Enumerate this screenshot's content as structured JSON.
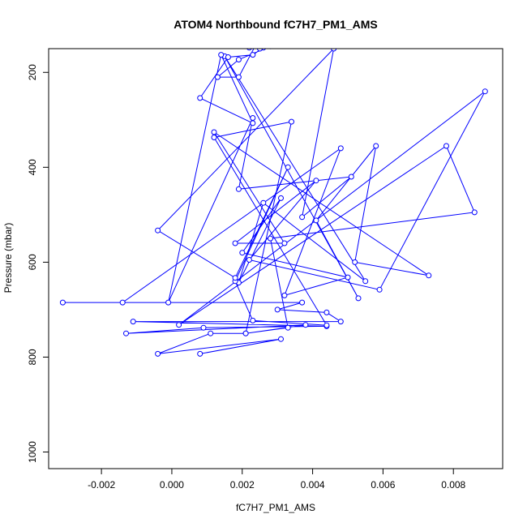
{
  "chart_data": {
    "type": "line",
    "title": "ATOM4 Northbound fC7H7_PM1_AMS",
    "xlabel": "fC7H7_PM1_AMS",
    "ylabel": "Pressure (mbar)",
    "xlim": [
      -0.0035,
      0.0094
    ],
    "ylim": [
      1035,
      150
    ],
    "y_reversed": true,
    "x_ticks": [
      -0.002,
      0.0,
      0.002,
      0.004,
      0.006,
      0.008
    ],
    "x_tick_labels": [
      "-0.002",
      "0.000",
      "0.002",
      "0.004",
      "0.006",
      "0.008"
    ],
    "y_ticks": [
      200,
      400,
      600,
      800,
      1000
    ],
    "y_tick_labels": [
      "200",
      "400",
      "600",
      "800",
      "1000"
    ],
    "series": [
      {
        "color": "#0000ff",
        "marker": "open-circle",
        "points": [
          [
            0.0008,
            793
          ],
          [
            0.0031,
            762
          ],
          [
            -0.0004,
            793
          ],
          [
            0.0011,
            750
          ],
          [
            0.0021,
            750
          ],
          [
            0.0038,
            732
          ],
          [
            -0.0013,
            750
          ],
          [
            0.0009,
            738
          ],
          [
            0.0044,
            735
          ],
          [
            -0.0011,
            725
          ],
          [
            0.0048,
            725
          ],
          [
            0.0044,
            706
          ],
          [
            0.003,
            700
          ],
          [
            0.0037,
            685
          ],
          [
            -0.0031,
            685
          ],
          [
            -0.0014,
            685
          ],
          [
            0.0048,
            360
          ],
          [
            0.0032,
            670
          ],
          [
            0.005,
            632
          ],
          [
            0.002,
            580
          ],
          [
            0.0031,
            465
          ],
          [
            0.0019,
            643
          ],
          [
            0.0026,
            475
          ],
          [
            0.0055,
            640
          ],
          [
            0.0015,
            166
          ],
          [
            0.0053,
            676
          ],
          [
            0.0041,
            512
          ],
          [
            0.0058,
            355
          ],
          [
            0.0052,
            600
          ],
          [
            0.0073,
            628
          ],
          [
            0.0012,
            326
          ],
          [
            0.0032,
            560
          ],
          [
            0.0018,
            560
          ],
          [
            0.0041,
            428
          ],
          [
            0.0022,
            595
          ],
          [
            0.0059,
            658
          ],
          [
            0.0089,
            240
          ],
          [
            0.0002,
            732
          ],
          [
            0.0078,
            355
          ],
          [
            0.0086,
            495
          ],
          [
            0.0028,
            550
          ],
          [
            0.0033,
            738
          ],
          [
            0.0021,
            750
          ],
          [
            0.0034,
            304
          ],
          [
            0.0012,
            337
          ],
          [
            0.0044,
            733
          ],
          [
            0.0023,
            723
          ],
          [
            0.0018,
            640
          ],
          [
            0.0033,
            400
          ],
          [
            0.0018,
            633
          ],
          [
            -0.0004,
            533
          ],
          [
            0.0046,
            150
          ],
          [
            0.0037,
            505
          ],
          [
            0.0051,
            420
          ],
          [
            0.0019,
            446
          ],
          [
            0.0023,
            296
          ],
          [
            -0.0001,
            685
          ],
          [
            0.0014,
            163
          ],
          [
            0.0023,
            307
          ],
          [
            0.0008,
            254
          ],
          [
            0.0016,
            168
          ],
          [
            0.0023,
            163
          ],
          [
            0.0026,
            148
          ],
          [
            0.0022,
            148
          ],
          [
            0.0025,
            150
          ],
          [
            0.0028,
            145
          ],
          [
            0.0019,
            173
          ],
          [
            0.0013,
            210
          ],
          [
            0.0019,
            210
          ],
          [
            0.0024,
            140
          ]
        ]
      }
    ]
  }
}
